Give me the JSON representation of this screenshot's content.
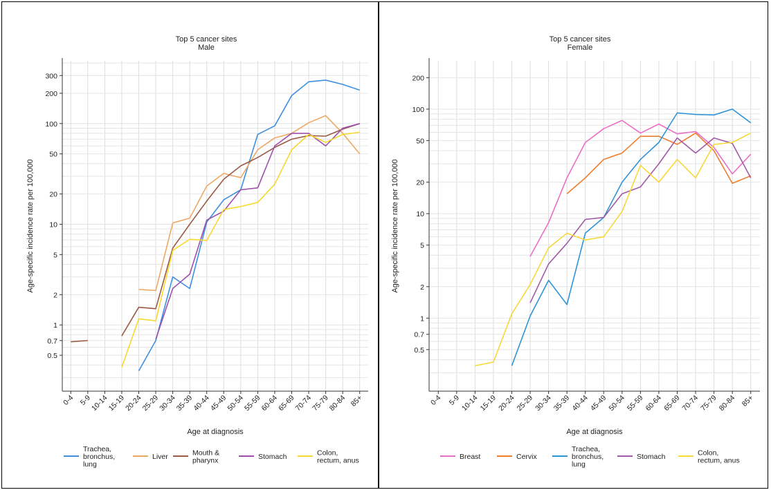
{
  "chart_data": [
    {
      "type": "line",
      "title": "Top 5 cancer sites",
      "subtitle": "Male",
      "xlabel": "Age at diagnosis",
      "ylabel": "Age-specific incidence rate per 100,000",
      "yscale": "log",
      "ylim": [
        0.22,
        420
      ],
      "grid": true,
      "legend_position": "bottom",
      "categories": [
        "0-4",
        "5-9",
        "10-14",
        "15-19",
        "20-24",
        "25-29",
        "30-34",
        "35-39",
        "40-44",
        "45-49",
        "50-54",
        "55-59",
        "60-64",
        "65-69",
        "70-74",
        "75-79",
        "80-84",
        "85+"
      ],
      "yticks": [
        0.5,
        0.7,
        1,
        2,
        5,
        10,
        20,
        50,
        100,
        200,
        300
      ],
      "ytick_labels": [
        "0.5",
        "0.7",
        "1",
        "2",
        "5",
        "10",
        "20",
        "50",
        "100",
        "200",
        "300"
      ],
      "series": [
        {
          "name": "Trachea,\nbronchus,\nlung",
          "color": "#3d8fe0",
          "values": [
            null,
            null,
            null,
            null,
            0.35,
            0.7,
            3.0,
            2.3,
            10.5,
            17.5,
            22,
            78,
            95,
            190,
            260,
            270,
            245,
            215
          ]
        },
        {
          "name": "Liver",
          "color": "#eea863",
          "values": [
            null,
            null,
            null,
            null,
            2.25,
            2.2,
            10.3,
            11.5,
            24,
            32,
            29,
            55,
            72,
            80,
            102,
            120,
            80,
            50
          ]
        },
        {
          "name": "Mouth &\npharynx",
          "color": "#9a5a44",
          "values": [
            0.68,
            0.7,
            null,
            0.78,
            1.5,
            1.45,
            5.8,
            10,
            17,
            28,
            38,
            46,
            58,
            70,
            76,
            75,
            88,
            100
          ]
        },
        {
          "name": "Stomach",
          "color": "#9d4fad",
          "values": [
            null,
            null,
            null,
            null,
            null,
            0.72,
            2.3,
            3.2,
            11,
            13.5,
            22,
            23,
            60,
            80,
            80,
            60,
            90,
            100
          ]
        },
        {
          "name": "Colon,\nrectum, anus",
          "color": "#f5d92e",
          "values": [
            null,
            null,
            null,
            0.38,
            1.15,
            1.1,
            5.5,
            7.1,
            6.9,
            14,
            15,
            16.5,
            25,
            55,
            78,
            65,
            78,
            82
          ]
        }
      ]
    },
    {
      "type": "line",
      "title": "Top 5 cancer sites",
      "subtitle": "Female",
      "xlabel": "Age at diagnosis",
      "ylabel": "Age-specific incidence rate per 100,000",
      "yscale": "log",
      "ylim": [
        0.2,
        290
      ],
      "grid": true,
      "legend_position": "bottom",
      "categories": [
        "0-4",
        "5-9",
        "10-14",
        "15-19",
        "20-24",
        "25-29",
        "30-34",
        "35-39",
        "40-44",
        "45-49",
        "50-54",
        "55-59",
        "60-64",
        "65-69",
        "70-74",
        "75-79",
        "80-84",
        "85+"
      ],
      "yticks": [
        0.5,
        0.7,
        1,
        2,
        5,
        10,
        20,
        50,
        100,
        200
      ],
      "ytick_labels": [
        "0.5",
        "0.7",
        "1",
        "2",
        "5",
        "10",
        "20",
        "50",
        "100",
        "200"
      ],
      "series": [
        {
          "name": "Breast",
          "color": "#ea6fc4",
          "values": [
            null,
            null,
            null,
            null,
            null,
            3.9,
            8.2,
            22,
            48,
            65,
            78,
            59,
            72,
            58,
            61,
            43,
            24,
            37
          ]
        },
        {
          "name": "Cervix",
          "color": "#ee7d2c",
          "values": [
            null,
            null,
            null,
            null,
            null,
            null,
            null,
            15.5,
            22,
            33,
            38,
            55,
            55,
            46,
            59,
            40,
            19.5,
            23
          ]
        },
        {
          "name": "Trachea,\nbronchus,\nlung",
          "color": "#2f93d8",
          "values": [
            null,
            null,
            null,
            null,
            0.35,
            1.05,
            2.3,
            1.35,
            6.5,
            9.2,
            20,
            33,
            48,
            92,
            89,
            88,
            100,
            74
          ]
        },
        {
          "name": "Stomach",
          "color": "#a05aa6",
          "values": [
            null,
            null,
            null,
            null,
            null,
            1.4,
            3.3,
            5.2,
            8.8,
            9.2,
            15.5,
            18,
            30,
            53,
            38,
            53,
            47,
            22
          ]
        },
        {
          "name": "Colon,\nrectum, anus",
          "color": "#f7d839",
          "values": [
            null,
            null,
            0.35,
            0.38,
            1.1,
            2.1,
            4.7,
            6.5,
            5.6,
            6,
            10.5,
            29,
            20,
            33,
            22,
            46,
            48,
            59
          ]
        }
      ]
    }
  ]
}
